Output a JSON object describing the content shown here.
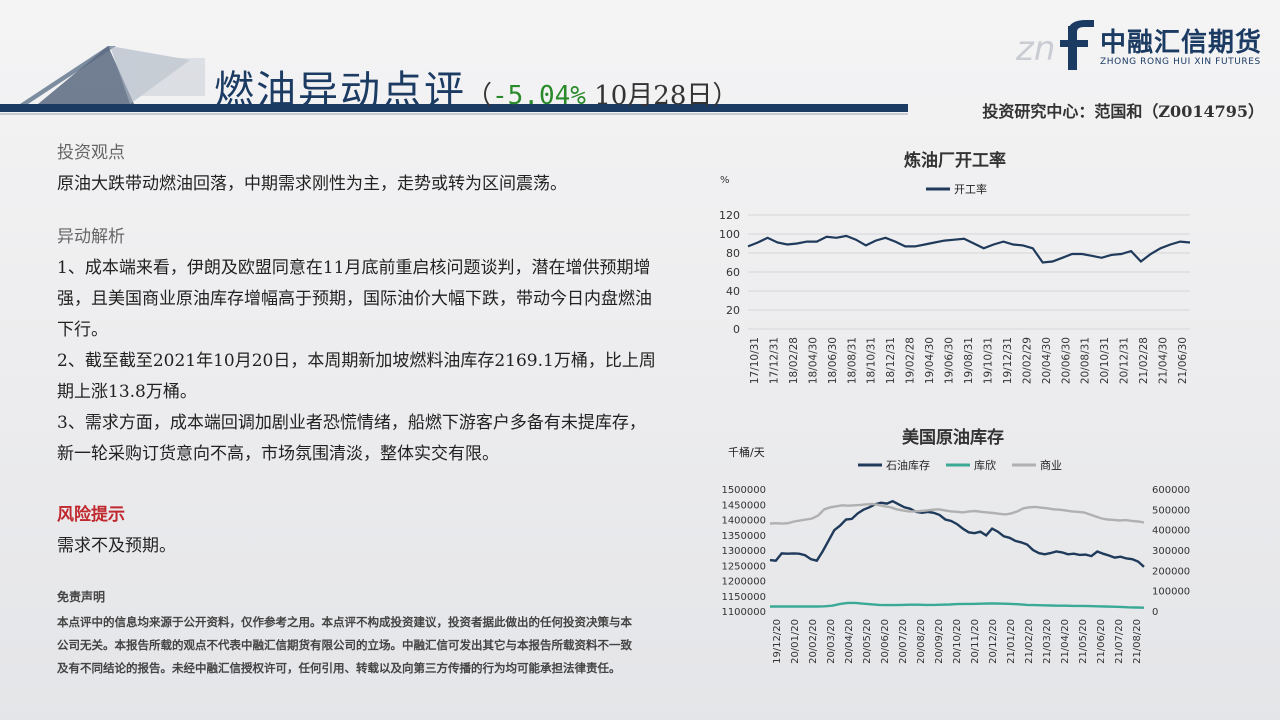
{
  "header": {
    "title_main": "燃油异动点评",
    "title_paren_open": "（",
    "title_change": "-5.04%",
    "title_date": " 10月28日）",
    "author": "投资研究中心：范国和（Z0014795）"
  },
  "logo": {
    "cn": "中融汇信期货",
    "en": "ZHONG RONG HUI XIN FUTURES"
  },
  "body": {
    "view_heading": "投资观点",
    "view_text": "原油大跌带动燃油回落，中期需求刚性为主，走势或转为区间震荡。",
    "analysis_heading": "异动解析",
    "analysis_points": [
      "1、成本端来看，伊朗及欧盟同意在11月底前重启核问题谈判，潜在增供预期增强，且美国商业原油库存增幅高于预期，国际油价大幅下跌，带动今日内盘燃油下行。",
      "2、截至截至2021年10月20日，本周期新加坡燃料油库存2169.1万桶，比上周期上涨13.8万桶。",
      "3、需求方面，成本端回调加剧业者恐慌情绪，船燃下游客户多备有未提库存，新一轮采购订货意向不高，市场氛围清淡，整体实交有限。"
    ],
    "risk_heading": "风险提示",
    "risk_text": "需求不及预期。"
  },
  "disclaimer": {
    "heading": "免责声明",
    "text": "本点评中的信息均来源于公开资料，仅作参考之用。本点评不构成投资建议，投资者据此做出的任何投资决策与本公司无关。本报告所载的观点不代表中融汇信期货有限公司的立场。中融汇信可发出其它与本报告所载资料不一致及有不同结论的报告。未经中融汇信授权许可，任何引用、转载以及向第三方传播的行为均可能承担法律责任。"
  },
  "chart_data": [
    {
      "type": "line",
      "title": "炼油厂开工率",
      "ylabel": "%",
      "ylim": [
        0,
        120
      ],
      "yticks": [
        0,
        20,
        40,
        60,
        80,
        100,
        120
      ],
      "grid": true,
      "legend_position": "top",
      "colors": {
        "开工率": "#1f3a5a"
      },
      "xtick_labels": [
        "17/10/31",
        "17/12/31",
        "18/02/28",
        "18/04/30",
        "18/06/30",
        "18/08/31",
        "18/10/31",
        "18/12/31",
        "19/02/28",
        "19/04/30",
        "19/06/30",
        "19/08/31",
        "19/10/31",
        "19/12/31",
        "20/02/29",
        "20/04/30",
        "20/06/30",
        "20/08/31",
        "20/10/31",
        "20/12/31",
        "21/02/28",
        "21/04/30",
        "21/06/30"
      ],
      "series": [
        {
          "name": "开工率",
          "values": [
            87,
            91,
            96,
            91,
            89,
            90,
            92,
            92,
            97,
            96,
            98,
            94,
            88,
            93,
            96,
            92,
            87,
            87,
            89,
            91,
            93,
            94,
            95,
            90,
            85,
            89,
            92,
            89,
            88,
            85,
            70,
            71,
            75,
            79,
            79,
            77,
            75,
            78,
            79,
            82,
            71,
            79,
            85,
            89,
            92,
            91
          ]
        }
      ]
    },
    {
      "type": "line",
      "title": "美国原油库存",
      "ylabel": "千桶/天",
      "ylim_left": [
        1100000,
        1500000
      ],
      "ylim_right": [
        0,
        600000
      ],
      "yticks_left": [
        1100000,
        1150000,
        1200000,
        1250000,
        1300000,
        1350000,
        1400000,
        1450000,
        1500000
      ],
      "yticks_right": [
        0,
        100000,
        200000,
        300000,
        400000,
        500000,
        600000
      ],
      "grid": false,
      "legend_position": "top",
      "colors": {
        "石油库存": "#1f3a5a",
        "库欣": "#3aaa96",
        "商业": "#b0b0b0"
      },
      "xtick_labels": [
        "19/12/20",
        "20/01/20",
        "20/02/20",
        "20/03/20",
        "20/04/20",
        "20/05/20",
        "20/06/20",
        "20/07/20",
        "20/08/20",
        "20/09/20",
        "20/10/20",
        "20/11/20",
        "20/12/20",
        "21/01/20",
        "21/02/20",
        "21/03/20",
        "21/04/20",
        "21/05/20",
        "21/06/20",
        "21/07/20",
        "21/08/20"
      ],
      "series": [
        {
          "name": "石油库存",
          "axis": "left",
          "values": [
            1267000,
            1265000,
            1289000,
            1288000,
            1289000,
            1288000,
            1283000,
            1270000,
            1265000,
            1295000,
            1330000,
            1365000,
            1380000,
            1400000,
            1402000,
            1420000,
            1432000,
            1440000,
            1450000,
            1455000,
            1452000,
            1460000,
            1450000,
            1440000,
            1435000,
            1425000,
            1422000,
            1425000,
            1422000,
            1415000,
            1400000,
            1395000,
            1385000,
            1370000,
            1358000,
            1355000,
            1360000,
            1348000,
            1370000,
            1360000,
            1345000,
            1340000,
            1330000,
            1325000,
            1318000,
            1300000,
            1290000,
            1286000,
            1290000,
            1295000,
            1292000,
            1286000,
            1288000,
            1284000,
            1285000,
            1280000,
            1295000,
            1288000,
            1282000,
            1275000,
            1278000,
            1272000,
            1270000,
            1262000,
            1245000
          ]
        },
        {
          "name": "库欣",
          "axis": "right",
          "values": [
            22000,
            22000,
            22000,
            22000,
            22000,
            22000,
            22000,
            23000,
            26000,
            35000,
            40000,
            40000,
            36000,
            33000,
            30000,
            29000,
            29000,
            30000,
            31000,
            31000,
            30000,
            30000,
            31000,
            32000,
            34000,
            35000,
            35000,
            36000,
            37000,
            37000,
            36000,
            35000,
            33000,
            30000,
            29000,
            28000,
            27000,
            26000,
            26000,
            25000,
            25000,
            24000,
            23000,
            22000,
            21000,
            20000,
            18000,
            17000,
            16000
          ]
        },
        {
          "name": "商业",
          "axis": "right",
          "values": [
            430000,
            432000,
            430000,
            432000,
            440000,
            445000,
            450000,
            455000,
            470000,
            500000,
            510000,
            515000,
            520000,
            518000,
            520000,
            522000,
            525000,
            526000,
            522000,
            515000,
            510000,
            500000,
            495000,
            490000,
            490000,
            492000,
            495000,
            498000,
            500000,
            495000,
            490000,
            488000,
            485000,
            490000,
            492000,
            488000,
            485000,
            482000,
            478000,
            475000,
            480000,
            490000,
            505000,
            510000,
            512000,
            508000,
            505000,
            500000,
            498000,
            495000,
            490000,
            488000,
            485000,
            475000,
            465000,
            455000,
            450000,
            448000,
            445000,
            447000,
            443000,
            440000,
            435000
          ]
        }
      ]
    }
  ]
}
